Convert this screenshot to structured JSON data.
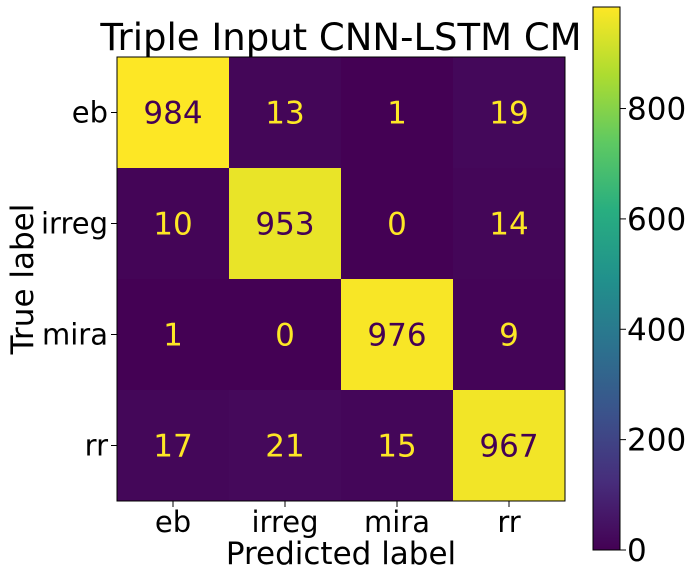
{
  "chart_data": {
    "type": "heatmap",
    "title": "Triple Input CNN-LSTM CM",
    "xlabel": "Predicted label",
    "ylabel": "True label",
    "x_categories": [
      "eb",
      "irreg",
      "mira",
      "rr"
    ],
    "y_categories": [
      "eb",
      "irreg",
      "mira",
      "rr"
    ],
    "values": [
      [
        984,
        13,
        1,
        19
      ],
      [
        10,
        953,
        0,
        14
      ],
      [
        1,
        0,
        976,
        9
      ],
      [
        17,
        21,
        15,
        967
      ]
    ],
    "colormap": "viridis",
    "colorbar": {
      "min": 0,
      "max": 984,
      "ticks": [
        0,
        200,
        400,
        600,
        800
      ]
    },
    "colors": {
      "high_text": "#440154",
      "low_text": "#fde725"
    }
  }
}
